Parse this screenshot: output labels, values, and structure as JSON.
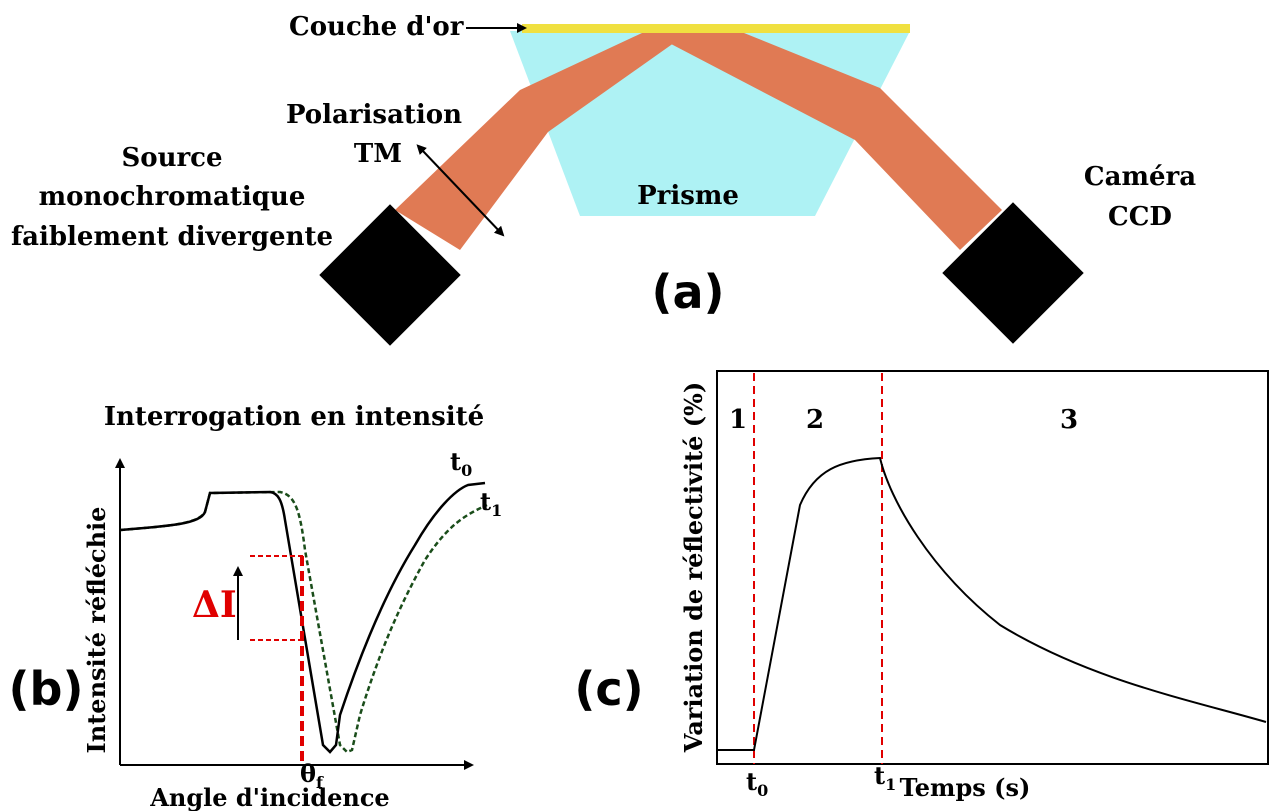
{
  "panel_a": {
    "gold_layer_label": "Couche d'or",
    "polarisation_line1": "Polarisation",
    "polarisation_line2": "TM",
    "source_line1": "Source",
    "source_line2": "monochromatique",
    "source_line3": "faiblement divergente",
    "prism_label": "Prisme",
    "camera_line1": "Caméra",
    "camera_line2": "CCD",
    "panel_label": "(a)",
    "colors": {
      "gold": "#f0e040",
      "prism": "#aef2f4",
      "beam": "#e07a54",
      "device": "#000000"
    }
  },
  "panel_b": {
    "title": "Interrogation en intensité",
    "ylabel": "Intensité réfléchie",
    "xlabel": "Angle d'incidence",
    "delta_label": "ΔI",
    "theta_label": "θ",
    "theta_sub": "f",
    "t0_label": "t",
    "t0_sub": "0",
    "t1_label": "t",
    "t1_sub": "1",
    "panel_label": "(b)",
    "colors": {
      "curve_t0": "#000000",
      "curve_t1": "#1a4d1a",
      "marker": "#e00000"
    }
  },
  "panel_c": {
    "ylabel": "Variation de réflectivité (%)",
    "xlabel": "Temps (s)",
    "phase1": "1",
    "phase2": "2",
    "phase3": "3",
    "t0_label": "t",
    "t0_sub": "0",
    "t1_label": "t",
    "t1_sub": "1",
    "panel_label": "(c)",
    "colors": {
      "curve": "#000000",
      "marker": "#e00000"
    }
  }
}
